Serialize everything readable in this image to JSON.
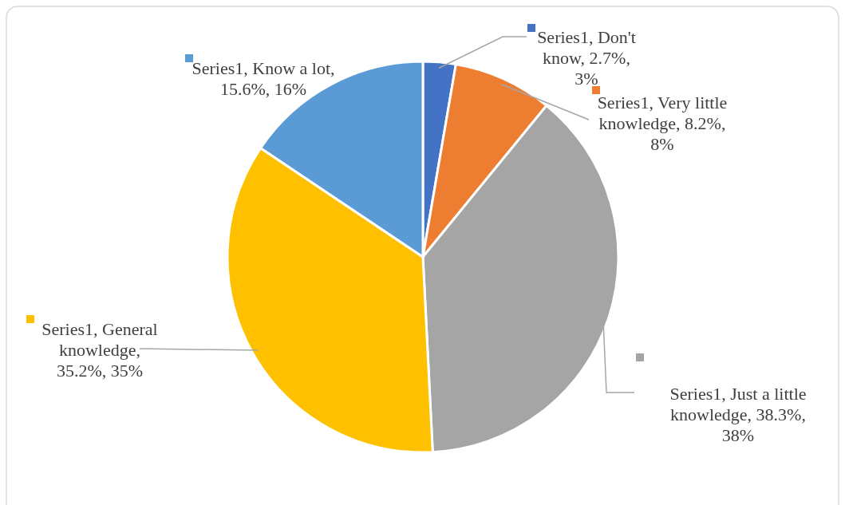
{
  "chart_data": {
    "type": "pie",
    "categories": [
      null,
      null,
      null,
      null,
      null
    ],
    "series": [
      {
        "values": [
          2.7,
          8.2,
          38.3,
          35.2,
          15.6
        ],
        "value_labels": [
          "Series1, Don't know, 2.7%, 3%",
          "Series1, Very little knowledge, 8.2%, 8%",
          "Series1, Just a little knowledge, 38.3%, 38%",
          "Series1, General knowledge, 35.2%, 35%",
          "Series1, Know a lot, 15.6%, 16%"
        ]
      }
    ],
    "colors": [
      "#4472c4",
      "#ed7d31",
      "#a5a5a5",
      "#ffc000",
      "#5b9bd5"
    ]
  }
}
